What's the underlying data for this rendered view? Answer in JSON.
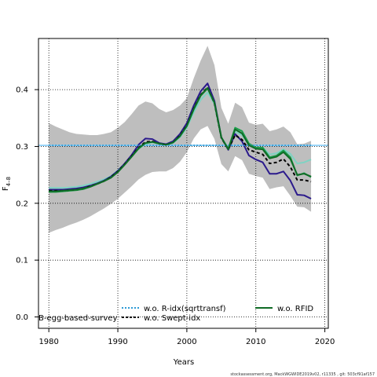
{
  "chart_data": {
    "type": "line",
    "xlabel": "Years",
    "ylabel": "F",
    "ylabel_sub": "4–8",
    "xlim": [
      1978.5,
      2020.5
    ],
    "ylim": [
      -0.02,
      0.49
    ],
    "xticks": [
      1980,
      1990,
      2000,
      2010,
      2020
    ],
    "yticks": [
      0.0,
      0.1,
      0.2,
      0.3,
      0.4
    ],
    "ytick_labels": [
      "0.0",
      "0.1",
      "0.2",
      "0.3",
      "0.4"
    ],
    "grid": true,
    "reference_line": {
      "y": 0.302,
      "color": "#87cefa"
    },
    "band": {
      "color": "#bebebe",
      "x": [
        1980,
        1981,
        1982,
        1983,
        1984,
        1985,
        1986,
        1987,
        1988,
        1989,
        1990,
        1991,
        1992,
        1993,
        1994,
        1995,
        1996,
        1997,
        1998,
        1999,
        2000,
        2001,
        2002,
        2003,
        2004,
        2005,
        2006,
        2007,
        2008,
        2009,
        2010,
        2011,
        2012,
        2013,
        2014,
        2015,
        2016,
        2017,
        2018
      ],
      "upper": [
        0.341,
        0.335,
        0.33,
        0.325,
        0.322,
        0.321,
        0.32,
        0.32,
        0.322,
        0.325,
        0.333,
        0.343,
        0.357,
        0.372,
        0.379,
        0.376,
        0.366,
        0.36,
        0.364,
        0.372,
        0.385,
        0.42,
        0.451,
        0.477,
        0.443,
        0.368,
        0.34,
        0.377,
        0.369,
        0.342,
        0.338,
        0.34,
        0.327,
        0.33,
        0.335,
        0.325,
        0.304,
        0.305,
        0.31
      ],
      "lower": [
        0.148,
        0.153,
        0.157,
        0.162,
        0.166,
        0.171,
        0.177,
        0.184,
        0.191,
        0.199,
        0.208,
        0.219,
        0.23,
        0.242,
        0.25,
        0.255,
        0.256,
        0.256,
        0.262,
        0.273,
        0.29,
        0.314,
        0.33,
        0.336,
        0.313,
        0.269,
        0.256,
        0.283,
        0.276,
        0.252,
        0.248,
        0.245,
        0.225,
        0.228,
        0.23,
        0.213,
        0.194,
        0.193,
        0.185
      ]
    },
    "x": [
      1980,
      1981,
      1982,
      1983,
      1984,
      1985,
      1986,
      1987,
      1988,
      1989,
      1990,
      1991,
      1992,
      1993,
      1994,
      1995,
      1996,
      1997,
      1998,
      1999,
      2000,
      2001,
      2002,
      2003,
      2004,
      2005,
      2006,
      2007,
      2008,
      2009,
      2010,
      2011,
      2012,
      2013,
      2014,
      2015,
      2016,
      2017,
      2018
    ],
    "series": [
      {
        "name": "",
        "color": "#7fd3c3",
        "width": 2,
        "dash": "",
        "values": [
          0.227,
          0.227,
          0.227,
          0.228,
          0.229,
          0.231,
          0.234,
          0.238,
          0.242,
          0.248,
          0.258,
          0.27,
          0.283,
          0.296,
          0.304,
          0.307,
          0.305,
          0.303,
          0.306,
          0.316,
          0.333,
          0.36,
          0.382,
          0.395,
          0.375,
          0.315,
          0.298,
          0.326,
          0.32,
          0.303,
          0.297,
          0.298,
          0.286,
          0.288,
          0.295,
          0.287,
          0.27,
          0.272,
          0.277
        ]
      },
      {
        "name": "",
        "color": "#2b1a8c",
        "width": 2,
        "dash": "",
        "values": [
          0.224,
          0.224,
          0.224,
          0.225,
          0.226,
          0.228,
          0.231,
          0.235,
          0.24,
          0.247,
          0.257,
          0.27,
          0.285,
          0.303,
          0.314,
          0.313,
          0.306,
          0.304,
          0.309,
          0.322,
          0.341,
          0.372,
          0.397,
          0.411,
          0.38,
          0.316,
          0.294,
          0.322,
          0.309,
          0.284,
          0.277,
          0.272,
          0.252,
          0.252,
          0.256,
          0.24,
          0.215,
          0.214,
          0.208
        ]
      },
      {
        "name": "",
        "color": "#1b9e4b",
        "width": 2,
        "dash": "",
        "values": [
          0.22,
          0.22,
          0.221,
          0.222,
          0.223,
          0.225,
          0.229,
          0.234,
          0.239,
          0.245,
          0.255,
          0.268,
          0.282,
          0.296,
          0.306,
          0.308,
          0.305,
          0.303,
          0.307,
          0.318,
          0.336,
          0.365,
          0.389,
          0.402,
          0.377,
          0.316,
          0.296,
          0.333,
          0.327,
          0.305,
          0.298,
          0.298,
          0.281,
          0.284,
          0.293,
          0.281,
          0.249,
          0.253,
          0.246
        ]
      },
      {
        "name": "w.o. R-idx(sqrttransf)",
        "color": "#2e9bd6",
        "width": 1.6,
        "dash": "2,2",
        "values": [
          0.302,
          0.302,
          0.302,
          0.302,
          0.302,
          0.302,
          0.302,
          0.302,
          0.302,
          0.302,
          0.302,
          0.302,
          0.302,
          0.302,
          0.302,
          0.302,
          0.302,
          0.302,
          0.302,
          0.302,
          0.302,
          0.302,
          0.302,
          0.302,
          0.302,
          0.302,
          0.302,
          0.302,
          0.302,
          0.302,
          0.302,
          0.302,
          0.302,
          0.302,
          0.302,
          0.302,
          0.302,
          0.302,
          0.302
        ]
      },
      {
        "name": "w.o. Swept-idx",
        "color": "#000000",
        "width": 2,
        "dash": "4,3",
        "values": [
          0.222,
          0.222,
          0.222,
          0.223,
          0.224,
          0.226,
          0.23,
          0.234,
          0.239,
          0.246,
          0.256,
          0.269,
          0.283,
          0.298,
          0.308,
          0.309,
          0.305,
          0.303,
          0.307,
          0.319,
          0.337,
          0.367,
          0.391,
          0.404,
          0.376,
          0.315,
          0.295,
          0.32,
          0.312,
          0.294,
          0.29,
          0.286,
          0.27,
          0.272,
          0.278,
          0.264,
          0.241,
          0.241,
          0.238
        ]
      },
      {
        "name": "w.o. RFID",
        "color": "#0f6b25",
        "width": 2,
        "dash": "",
        "values": [
          0.221,
          0.221,
          0.222,
          0.223,
          0.224,
          0.226,
          0.229,
          0.234,
          0.239,
          0.245,
          0.255,
          0.268,
          0.282,
          0.297,
          0.306,
          0.308,
          0.305,
          0.303,
          0.307,
          0.318,
          0.336,
          0.366,
          0.39,
          0.403,
          0.377,
          0.316,
          0.295,
          0.33,
          0.323,
          0.302,
          0.296,
          0.295,
          0.279,
          0.282,
          0.29,
          0.278,
          0.25,
          0.252,
          0.247
        ]
      }
    ],
    "legend": {
      "placement": "bottom",
      "entries": [
        {
          "label": "B-egg-based-survey",
          "color": "#ffffff",
          "dash": ""
        },
        {
          "label": "w.o. R-idx(sqrttransf)",
          "color": "#2e9bd6",
          "dash": "2,2"
        },
        {
          "label": "w.o. Swept-idx",
          "color": "#000000",
          "dash": "3,2"
        },
        {
          "label": "w.o. RFID",
          "color": "#0f6b25",
          "dash": ""
        }
      ]
    },
    "footer": "stockassessment.org, MackWGWIDE2019v02, r11335 , git: 503cf91af157"
  }
}
